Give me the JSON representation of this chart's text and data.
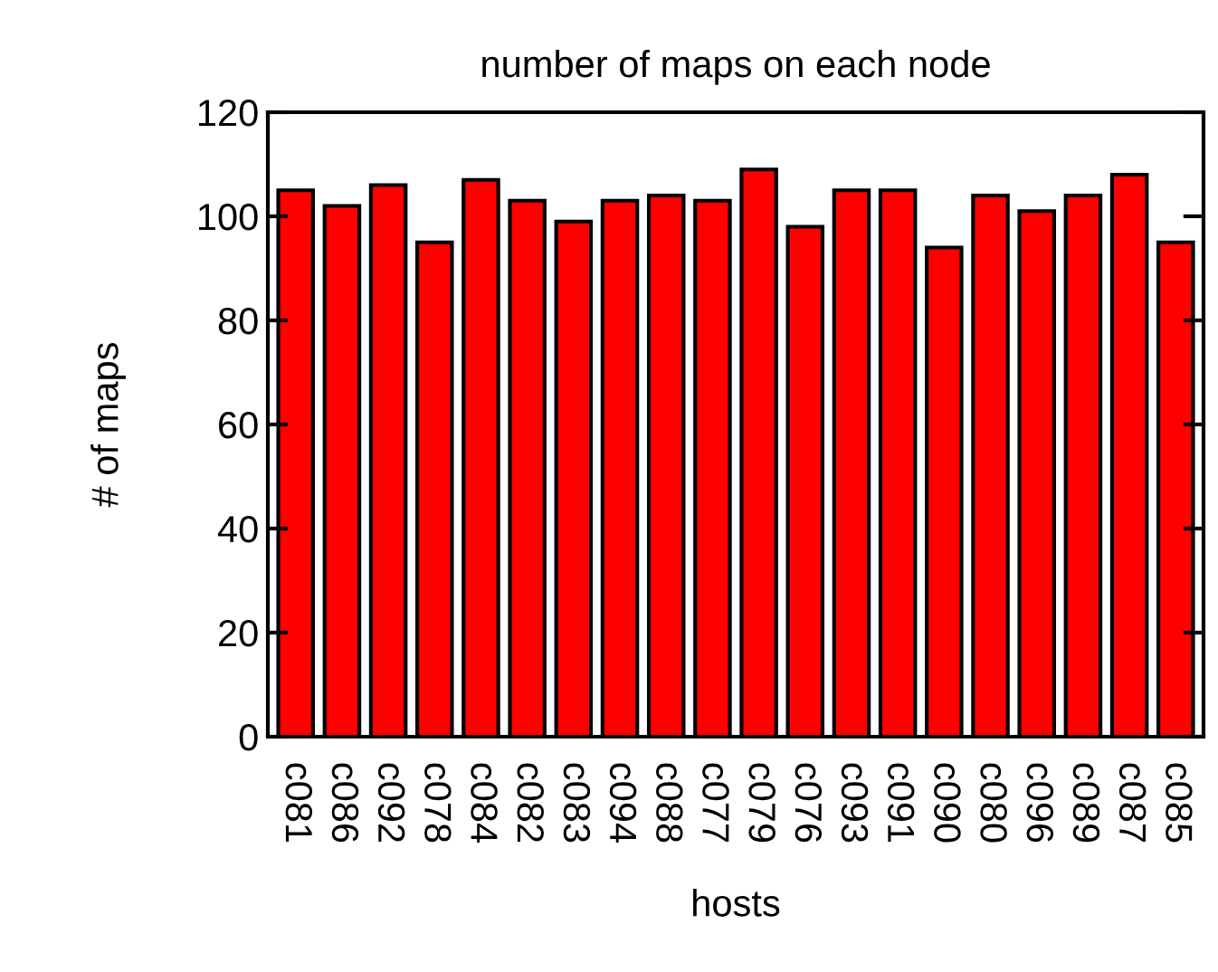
{
  "chart_data": {
    "type": "bar",
    "title": "number of maps on each node",
    "xlabel": "hosts",
    "ylabel": "# of maps",
    "categories": [
      "c081",
      "c086",
      "c092",
      "c078",
      "c084",
      "c082",
      "c083",
      "c094",
      "c088",
      "c077",
      "c079",
      "c076",
      "c093",
      "c091",
      "c090",
      "c080",
      "c096",
      "c089",
      "c087",
      "c085"
    ],
    "values": [
      105,
      102,
      106,
      95,
      107,
      103,
      99,
      103,
      104,
      103,
      109,
      98,
      105,
      105,
      94,
      104,
      101,
      104,
      108,
      95
    ],
    "color": "#ff0000",
    "ylim": [
      0,
      120
    ],
    "yticks": [
      0,
      20,
      40,
      60,
      80,
      100,
      120
    ],
    "grid": false,
    "legend": false
  }
}
